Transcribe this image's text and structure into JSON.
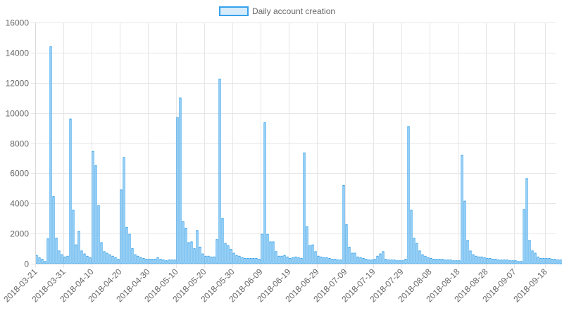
{
  "chart_data": {
    "type": "bar",
    "legend": {
      "position": "top",
      "label": "Daily account creation"
    },
    "colors": {
      "bar_fill": "#d7ecfb",
      "bar_stroke": "#36a2eb",
      "grid": "#e6e6e6",
      "tick_text": "#666666"
    },
    "grid": true,
    "ylim": [
      0,
      16000
    ],
    "y_ticks": [
      "16000",
      "14000",
      "12000",
      "10000",
      "8000",
      "6000",
      "4000",
      "2000",
      "0"
    ],
    "x_tick_labels": [
      "2018-03-21",
      "2018-03-31",
      "2018-04-10",
      "2018-04-20",
      "2018-04-30",
      "2018-05-10",
      "2018-05-20",
      "2018-05-30",
      "2018-06-09",
      "2018-06-19",
      "2018-06-29",
      "2018-07-09",
      "2018-07-19",
      "2018-07-29",
      "2018-08-08",
      "2018-08-18",
      "2018-08-28",
      "2018-09-07",
      "2018-09-18"
    ],
    "x_start": "2018-03-21",
    "x_end": "2018-09-22",
    "values": [
      550,
      400,
      300,
      150,
      1650,
      14400,
      4450,
      1700,
      850,
      600,
      450,
      500,
      9600,
      3550,
      1250,
      2150,
      850,
      650,
      500,
      400,
      7450,
      6500,
      3850,
      1400,
      800,
      700,
      600,
      500,
      400,
      300,
      4900,
      7050,
      2400,
      1950,
      1000,
      600,
      500,
      400,
      350,
      300,
      300,
      300,
      300,
      400,
      300,
      250,
      200,
      250,
      250,
      250,
      9700,
      11000,
      2800,
      2350,
      1400,
      1450,
      1000,
      2200,
      1100,
      650,
      500,
      500,
      450,
      450,
      1600,
      12250,
      3000,
      1350,
      1200,
      950,
      700,
      550,
      500,
      400,
      350,
      350,
      350,
      350,
      350,
      300,
      1950,
      9350,
      1950,
      1450,
      1450,
      800,
      500,
      500,
      550,
      450,
      350,
      400,
      450,
      400,
      350,
      7350,
      2450,
      1200,
      1250,
      800,
      500,
      450,
      400,
      400,
      350,
      300,
      300,
      250,
      250,
      5200,
      2600,
      1100,
      700,
      700,
      450,
      400,
      350,
      300,
      250,
      250,
      300,
      500,
      650,
      800,
      300,
      250,
      250,
      250,
      200,
      200,
      200,
      300,
      9100,
      3550,
      1700,
      1350,
      850,
      600,
      500,
      400,
      350,
      300,
      300,
      300,
      300,
      250,
      250,
      250,
      200,
      200,
      200,
      7200,
      4150,
      1550,
      850,
      600,
      500,
      450,
      450,
      400,
      350,
      350,
      300,
      300,
      250,
      250,
      250,
      250,
      200,
      200,
      200,
      150,
      150,
      3600,
      5650,
      1550,
      850,
      700,
      450,
      350,
      350,
      350,
      350,
      300,
      300,
      250,
      250,
      200,
      150,
      150
    ]
  }
}
